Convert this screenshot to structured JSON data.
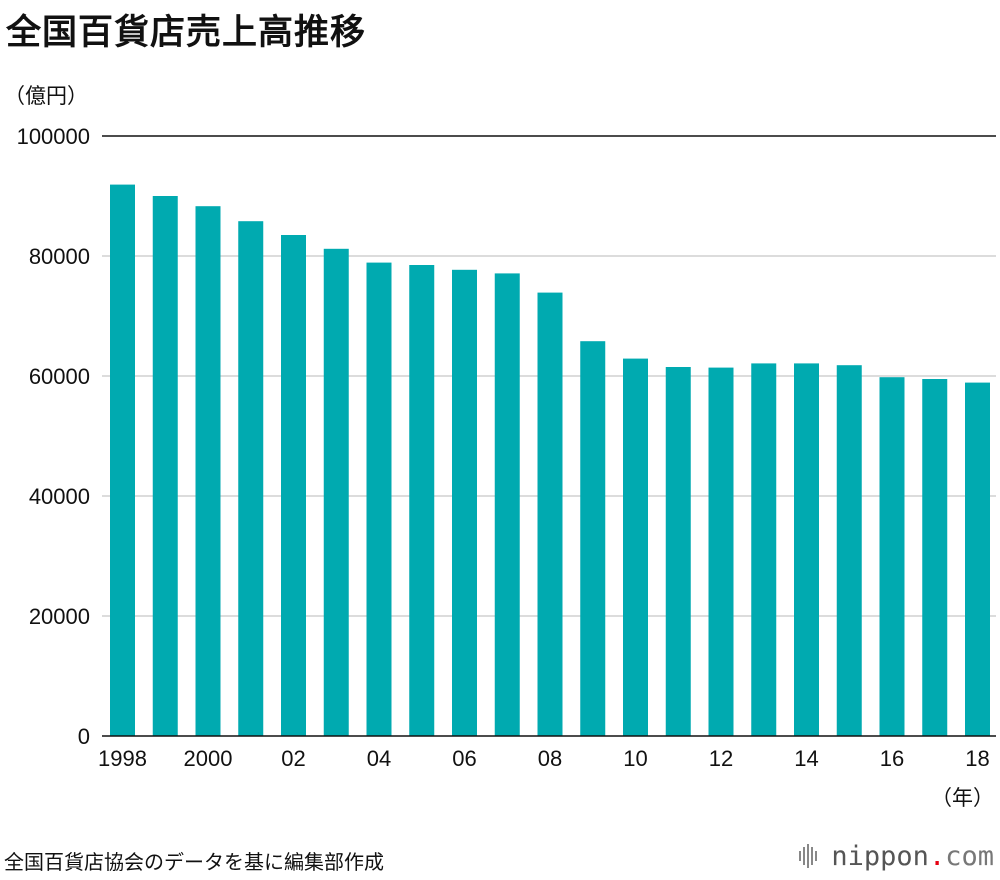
{
  "chart_data": {
    "type": "bar",
    "title": "全国百貨店売上高推移",
    "ylabel": "（億円）",
    "xlabel": "（年）",
    "source": "全国百貨店協会のデータを基に編集部作成",
    "color": "#00aab0",
    "ylim": [
      0,
      100000
    ],
    "yticks": [
      0,
      20000,
      40000,
      60000,
      80000,
      100000
    ],
    "ytick_labels": [
      "0",
      "20000",
      "40000",
      "60000",
      "80000",
      "100000"
    ],
    "grid": true,
    "categories": [
      "1998",
      "1999",
      "2000",
      "2001",
      "2002",
      "2003",
      "2004",
      "2005",
      "2006",
      "2007",
      "2008",
      "2009",
      "2010",
      "2011",
      "2012",
      "2013",
      "2014",
      "2015",
      "2016",
      "2017",
      "2018"
    ],
    "xtick_labels": [
      "1998",
      "",
      "2000",
      "",
      "02",
      "",
      "04",
      "",
      "06",
      "",
      "08",
      "",
      "10",
      "",
      "12",
      "",
      "14",
      "",
      "16",
      "",
      "18"
    ],
    "values": [
      91900,
      90000,
      88300,
      85800,
      83500,
      81200,
      78900,
      78500,
      77700,
      77100,
      73900,
      65800,
      62900,
      61500,
      61400,
      62100,
      62100,
      61800,
      59800,
      59500,
      58900
    ]
  },
  "brand": {
    "name": "nippon",
    "dot": ".",
    "tld": "com",
    "icon": "nippon-com-logo-icon"
  }
}
